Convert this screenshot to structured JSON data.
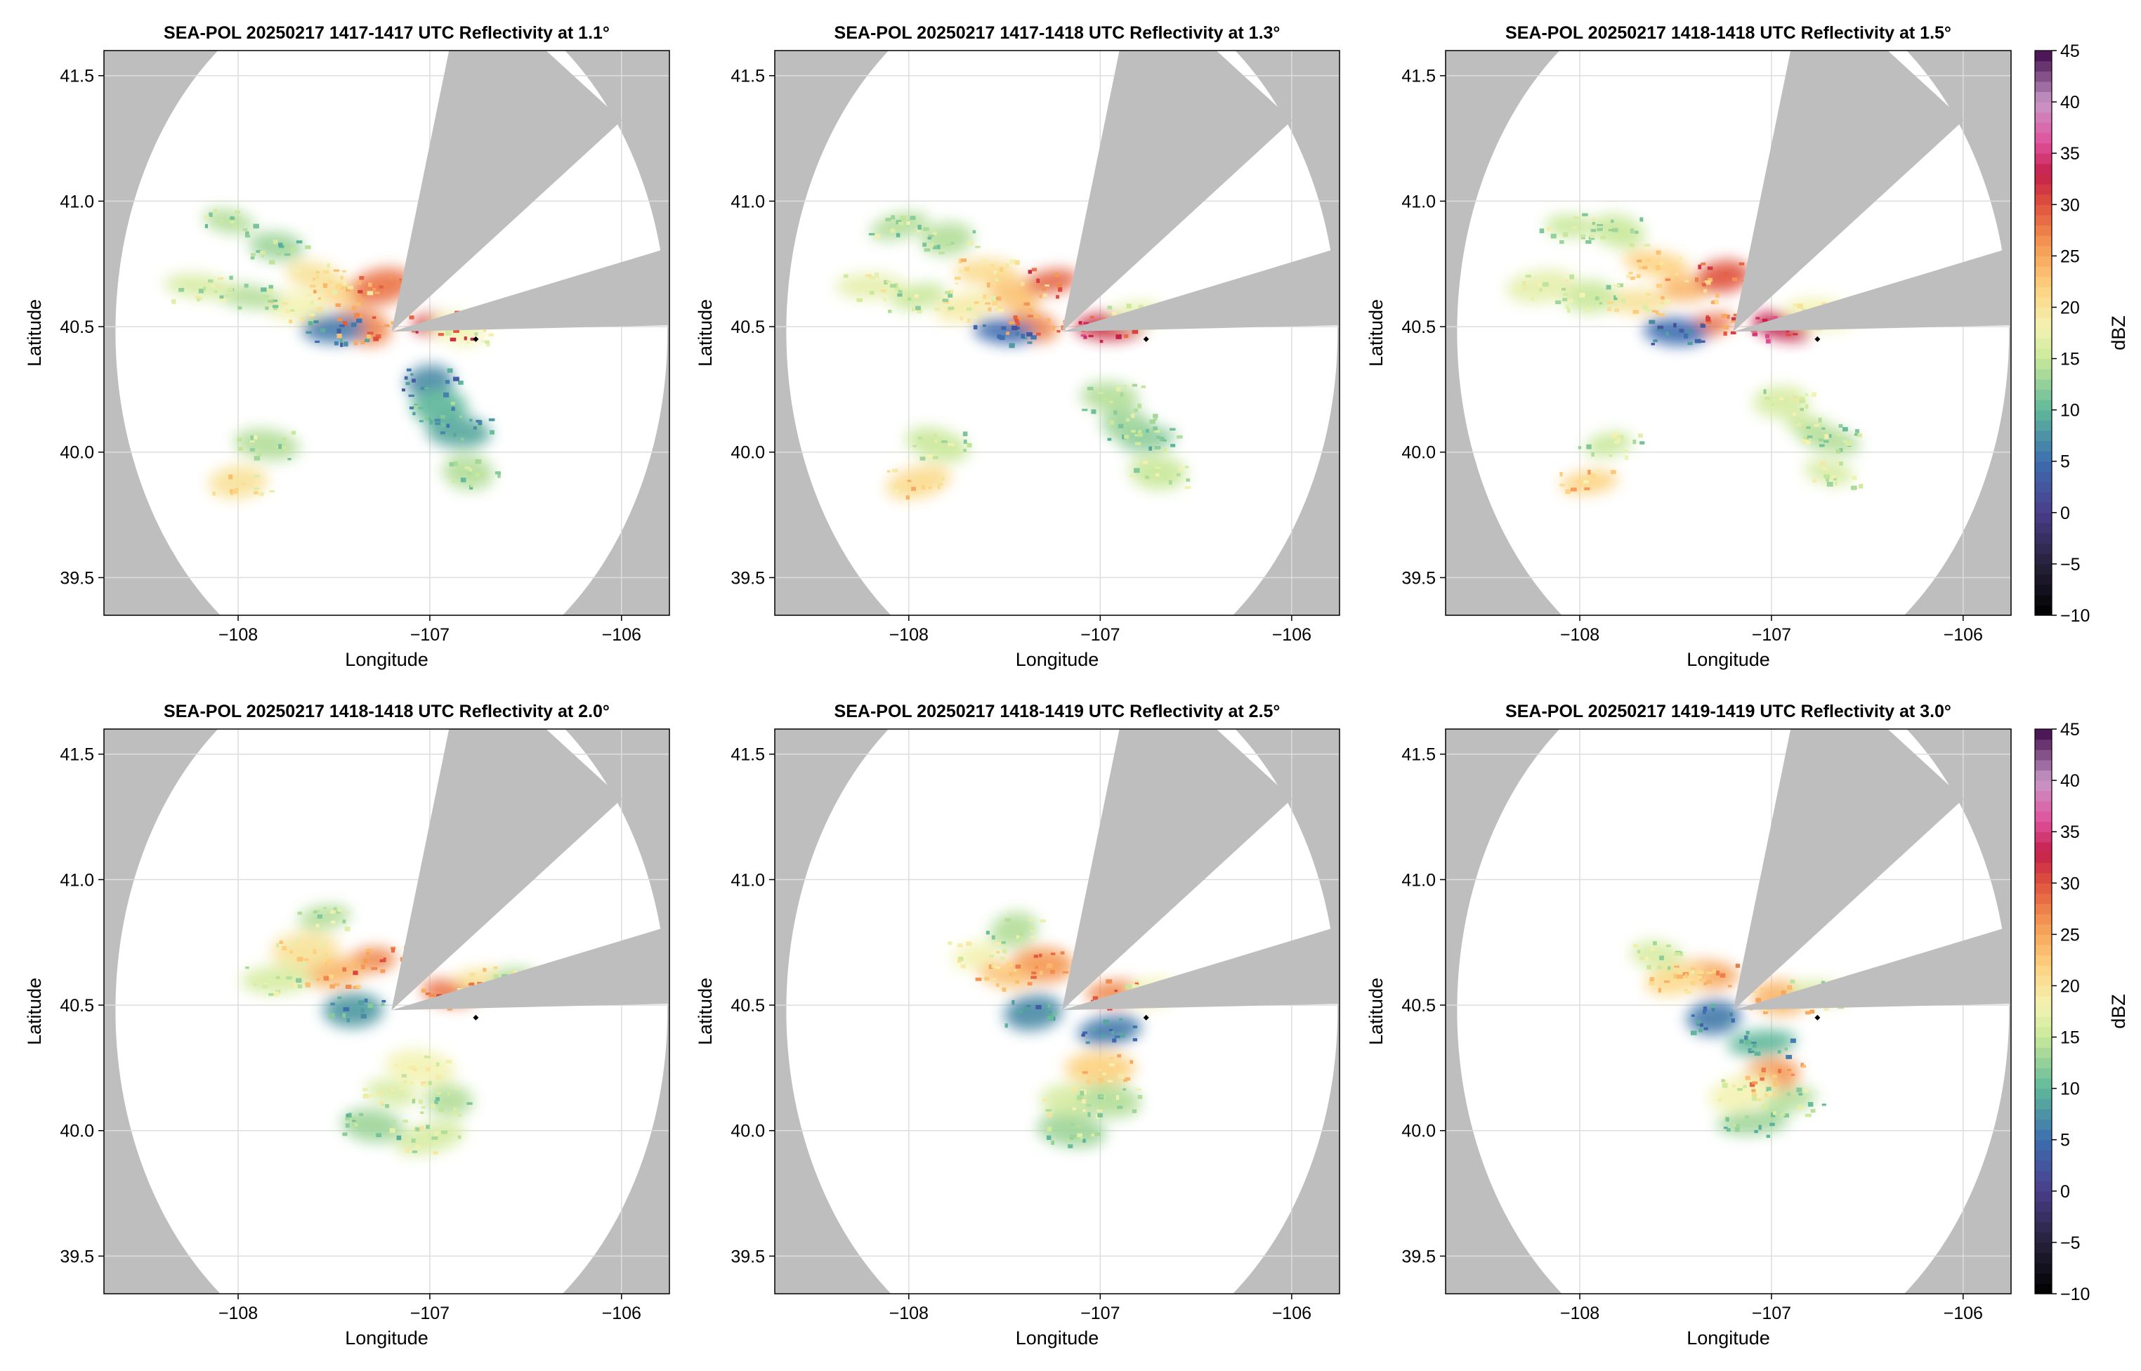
{
  "colors": {
    "background": "#ffffff",
    "masked_sector": "#bebebe",
    "radar_range": "#ffffff",
    "grid": "#dddddd",
    "frame": "#000000",
    "site_marker": "#000000"
  },
  "colormap": {
    "name": "Spectral (reversed) with purple/black ends",
    "stops": [
      [
        -10,
        "#000000"
      ],
      [
        -5,
        "#26213a"
      ],
      [
        0,
        "#4a3e8a"
      ],
      [
        5,
        "#3d6db0"
      ],
      [
        10,
        "#5fb89a"
      ],
      [
        15,
        "#c9e89a"
      ],
      [
        18,
        "#f3f3b4"
      ],
      [
        22,
        "#fdd17f"
      ],
      [
        26,
        "#f59a54"
      ],
      [
        30,
        "#e0523d"
      ],
      [
        33,
        "#c41f4a"
      ],
      [
        36,
        "#e0509a"
      ],
      [
        40,
        "#c998c8"
      ],
      [
        45,
        "#3e0a4a"
      ]
    ]
  },
  "chart_data": [
    {
      "type": "heatmap",
      "title": "SEA-POL 20250217 1417-1417 UTC Reflectivity at 1.1°",
      "xlabel": "Longitude",
      "ylabel": "Latitude",
      "xlim": [
        -108.7,
        -105.75
      ],
      "ylim": [
        39.35,
        41.6
      ],
      "xticks": [
        -108,
        -107,
        -106
      ],
      "xtick_labels": [
        "−108",
        "−107",
        "−106"
      ],
      "yticks": [
        39.5,
        40.0,
        40.5,
        41.0,
        41.5
      ],
      "ytick_labels": [
        "39.5",
        "40.0",
        "40.5",
        "41.0",
        "41.5"
      ],
      "grid": true,
      "radar_center": [
        -107.2,
        40.48
      ],
      "radar_range_deg": 1.44,
      "blocked_sectors_deg": [
        [
          15,
          55
        ],
        [
          77,
          89
        ]
      ],
      "site_marker": [
        -106.76,
        40.45
      ],
      "echo_cells": [
        {
          "lon": -107.45,
          "lat": 40.63,
          "dbz": 22
        },
        {
          "lon": -107.25,
          "lat": 40.66,
          "dbz": 28
        },
        {
          "lon": -107.7,
          "lat": 40.58,
          "dbz": 18
        },
        {
          "lon": -107.95,
          "lat": 40.62,
          "dbz": 14
        },
        {
          "lon": -108.2,
          "lat": 40.66,
          "dbz": 16
        },
        {
          "lon": -107.6,
          "lat": 40.7,
          "dbz": 20
        },
        {
          "lon": -107.35,
          "lat": 40.5,
          "dbz": 27
        },
        {
          "lon": -107.5,
          "lat": 40.49,
          "dbz": 6
        },
        {
          "lon": -107.8,
          "lat": 40.82,
          "dbz": 13
        },
        {
          "lon": -108.05,
          "lat": 40.92,
          "dbz": 14
        },
        {
          "lon": -106.95,
          "lat": 40.51,
          "dbz": 31
        },
        {
          "lon": -106.85,
          "lat": 40.49,
          "dbz": 18
        },
        {
          "lon": -107.0,
          "lat": 40.28,
          "dbz": 7
        },
        {
          "lon": -106.95,
          "lat": 40.18,
          "dbz": 10
        },
        {
          "lon": -106.85,
          "lat": 40.08,
          "dbz": 9
        },
        {
          "lon": -106.8,
          "lat": 39.92,
          "dbz": 14
        },
        {
          "lon": -108.0,
          "lat": 39.88,
          "dbz": 20
        },
        {
          "lon": -107.85,
          "lat": 40.03,
          "dbz": 14
        }
      ]
    },
    {
      "type": "heatmap",
      "title": "SEA-POL 20250217 1417-1418 UTC Reflectivity at 1.3°",
      "xlabel": "Longitude",
      "ylabel": "Latitude",
      "xlim": [
        -108.7,
        -105.75
      ],
      "ylim": [
        39.35,
        41.6
      ],
      "xticks": [
        -108,
        -107,
        -106
      ],
      "xtick_labels": [
        "−108",
        "−107",
        "−106"
      ],
      "yticks": [
        39.5,
        40.0,
        40.5,
        41.0,
        41.5
      ],
      "ytick_labels": [
        "39.5",
        "40.0",
        "40.5",
        "41.0",
        "41.5"
      ],
      "grid": true,
      "radar_center": [
        -107.2,
        40.48
      ],
      "radar_range_deg": 1.44,
      "blocked_sectors_deg": [
        [
          15,
          55
        ],
        [
          77,
          89
        ]
      ],
      "site_marker": [
        -106.76,
        40.45
      ],
      "echo_cells": [
        {
          "lon": -107.45,
          "lat": 40.63,
          "dbz": 23
        },
        {
          "lon": -107.25,
          "lat": 40.68,
          "dbz": 29
        },
        {
          "lon": -107.7,
          "lat": 40.58,
          "dbz": 19
        },
        {
          "lon": -107.95,
          "lat": 40.62,
          "dbz": 15
        },
        {
          "lon": -108.2,
          "lat": 40.66,
          "dbz": 17
        },
        {
          "lon": -107.6,
          "lat": 40.72,
          "dbz": 21
        },
        {
          "lon": -107.35,
          "lat": 40.5,
          "dbz": 27
        },
        {
          "lon": -107.5,
          "lat": 40.48,
          "dbz": 5
        },
        {
          "lon": -107.8,
          "lat": 40.85,
          "dbz": 14
        },
        {
          "lon": -108.05,
          "lat": 40.9,
          "dbz": 14
        },
        {
          "lon": -106.95,
          "lat": 40.5,
          "dbz": 32
        },
        {
          "lon": -106.8,
          "lat": 40.55,
          "dbz": 17
        },
        {
          "lon": -106.95,
          "lat": 40.22,
          "dbz": 14
        },
        {
          "lon": -106.85,
          "lat": 40.1,
          "dbz": 13
        },
        {
          "lon": -106.75,
          "lat": 40.05,
          "dbz": 12
        },
        {
          "lon": -106.7,
          "lat": 39.92,
          "dbz": 15
        },
        {
          "lon": -107.95,
          "lat": 39.88,
          "dbz": 21
        },
        {
          "lon": -107.85,
          "lat": 40.03,
          "dbz": 15
        }
      ]
    },
    {
      "type": "heatmap",
      "title": "SEA-POL 20250217 1418-1418 UTC Reflectivity at 1.5°",
      "xlabel": "Longitude",
      "ylabel": "Latitude",
      "xlim": [
        -108.7,
        -105.75
      ],
      "ylim": [
        39.35,
        41.6
      ],
      "xticks": [
        -108,
        -107,
        -106
      ],
      "xtick_labels": [
        "−108",
        "−107",
        "−106"
      ],
      "yticks": [
        39.5,
        40.0,
        40.5,
        41.0,
        41.5
      ],
      "ytick_labels": [
        "39.5",
        "40.0",
        "40.5",
        "41.0",
        "41.5"
      ],
      "grid": true,
      "radar_center": [
        -107.2,
        40.48
      ],
      "radar_range_deg": 1.44,
      "blocked_sectors_deg": [
        [
          15,
          55
        ],
        [
          77,
          89
        ]
      ],
      "site_marker": [
        -106.76,
        40.45
      ],
      "echo_cells": [
        {
          "lon": -107.45,
          "lat": 40.65,
          "dbz": 24
        },
        {
          "lon": -107.25,
          "lat": 40.7,
          "dbz": 30
        },
        {
          "lon": -107.7,
          "lat": 40.6,
          "dbz": 20
        },
        {
          "lon": -107.95,
          "lat": 40.62,
          "dbz": 15
        },
        {
          "lon": -108.2,
          "lat": 40.66,
          "dbz": 17
        },
        {
          "lon": -107.6,
          "lat": 40.75,
          "dbz": 22
        },
        {
          "lon": -107.35,
          "lat": 40.5,
          "dbz": 28
        },
        {
          "lon": -107.5,
          "lat": 40.48,
          "dbz": 5
        },
        {
          "lon": -107.8,
          "lat": 40.88,
          "dbz": 15
        },
        {
          "lon": -108.05,
          "lat": 40.9,
          "dbz": 15
        },
        {
          "lon": -106.95,
          "lat": 40.5,
          "dbz": 33
        },
        {
          "lon": -106.75,
          "lat": 40.55,
          "dbz": 18
        },
        {
          "lon": -106.95,
          "lat": 40.2,
          "dbz": 16
        },
        {
          "lon": -106.8,
          "lat": 40.1,
          "dbz": 15
        },
        {
          "lon": -106.7,
          "lat": 40.05,
          "dbz": 14
        },
        {
          "lon": -106.7,
          "lat": 39.92,
          "dbz": 16
        },
        {
          "lon": -107.95,
          "lat": 39.88,
          "dbz": 22
        },
        {
          "lon": -107.85,
          "lat": 40.03,
          "dbz": 15
        }
      ]
    },
    {
      "type": "heatmap",
      "title": "SEA-POL 20250217 1418-1418 UTC Reflectivity at 2.0°",
      "xlabel": "Longitude",
      "ylabel": "Latitude",
      "xlim": [
        -108.7,
        -105.75
      ],
      "ylim": [
        39.35,
        41.6
      ],
      "xticks": [
        -108,
        -107,
        -106
      ],
      "xtick_labels": [
        "−108",
        "−107",
        "−106"
      ],
      "yticks": [
        39.5,
        40.0,
        40.5,
        41.0,
        41.5
      ],
      "ytick_labels": [
        "39.5",
        "40.0",
        "40.5",
        "41.0",
        "41.5"
      ],
      "grid": true,
      "radar_center": [
        -107.2,
        40.48
      ],
      "radar_range_deg": 1.44,
      "blocked_sectors_deg": [
        [
          15,
          55
        ],
        [
          77,
          89
        ]
      ],
      "site_marker": [
        -106.76,
        40.45
      ],
      "echo_cells": [
        {
          "lon": -107.3,
          "lat": 40.68,
          "dbz": 27
        },
        {
          "lon": -107.5,
          "lat": 40.63,
          "dbz": 24
        },
        {
          "lon": -107.65,
          "lat": 40.72,
          "dbz": 20
        },
        {
          "lon": -107.8,
          "lat": 40.6,
          "dbz": 16
        },
        {
          "lon": -107.55,
          "lat": 40.85,
          "dbz": 14
        },
        {
          "lon": -107.4,
          "lat": 40.48,
          "dbz": 8
        },
        {
          "lon": -106.9,
          "lat": 40.55,
          "dbz": 28
        },
        {
          "lon": -106.7,
          "lat": 40.6,
          "dbz": 20
        },
        {
          "lon": -106.55,
          "lat": 40.6,
          "dbz": 14
        },
        {
          "lon": -107.05,
          "lat": 40.25,
          "dbz": 18
        },
        {
          "lon": -107.2,
          "lat": 40.15,
          "dbz": 16
        },
        {
          "lon": -106.9,
          "lat": 40.12,
          "dbz": 14
        },
        {
          "lon": -107.3,
          "lat": 40.02,
          "dbz": 13
        },
        {
          "lon": -107.0,
          "lat": 39.97,
          "dbz": 16
        }
      ]
    },
    {
      "type": "heatmap",
      "title": "SEA-POL 20250217 1418-1419 UTC Reflectivity at 2.5°",
      "xlabel": "Longitude",
      "ylabel": "Latitude",
      "xlim": [
        -108.7,
        -105.75
      ],
      "ylim": [
        39.35,
        41.6
      ],
      "xticks": [
        -108,
        -107,
        -106
      ],
      "xtick_labels": [
        "−108",
        "−107",
        "−106"
      ],
      "yticks": [
        39.5,
        40.0,
        40.5,
        41.0,
        41.5
      ],
      "ytick_labels": [
        "39.5",
        "40.0",
        "40.5",
        "41.0",
        "41.5"
      ],
      "grid": true,
      "radar_center": [
        -107.2,
        40.48
      ],
      "radar_range_deg": 1.44,
      "blocked_sectors_deg": [
        [
          15,
          55
        ],
        [
          77,
          89
        ]
      ],
      "site_marker": [
        -106.76,
        40.45
      ],
      "echo_cells": [
        {
          "lon": -107.3,
          "lat": 40.66,
          "dbz": 26
        },
        {
          "lon": -107.5,
          "lat": 40.62,
          "dbz": 23
        },
        {
          "lon": -107.65,
          "lat": 40.7,
          "dbz": 18
        },
        {
          "lon": -107.45,
          "lat": 40.8,
          "dbz": 14
        },
        {
          "lon": -107.35,
          "lat": 40.47,
          "dbz": 7
        },
        {
          "lon": -106.9,
          "lat": 40.55,
          "dbz": 27
        },
        {
          "lon": -106.72,
          "lat": 40.55,
          "dbz": 18
        },
        {
          "lon": -106.95,
          "lat": 40.4,
          "dbz": 6
        },
        {
          "lon": -107.0,
          "lat": 40.25,
          "dbz": 22
        },
        {
          "lon": -107.15,
          "lat": 40.12,
          "dbz": 16
        },
        {
          "lon": -106.95,
          "lat": 40.12,
          "dbz": 14
        },
        {
          "lon": -107.15,
          "lat": 40.0,
          "dbz": 13
        }
      ]
    },
    {
      "type": "heatmap",
      "title": "SEA-POL 20250217 1419-1419 UTC Reflectivity at 3.0°",
      "xlabel": "Longitude",
      "ylabel": "Latitude",
      "xlim": [
        -108.7,
        -105.75
      ],
      "ylim": [
        39.35,
        41.6
      ],
      "xticks": [
        -108,
        -107,
        -106
      ],
      "xtick_labels": [
        "−108",
        "−107",
        "−106"
      ],
      "yticks": [
        39.5,
        40.0,
        40.5,
        41.0,
        41.5
      ],
      "ytick_labels": [
        "39.5",
        "40.0",
        "40.5",
        "41.0",
        "41.5"
      ],
      "grid": true,
      "radar_center": [
        -107.2,
        40.48
      ],
      "radar_range_deg": 1.44,
      "blocked_sectors_deg": [
        [
          15,
          55
        ],
        [
          77,
          89
        ]
      ],
      "site_marker": [
        -106.76,
        40.45
      ],
      "echo_cells": [
        {
          "lon": -107.35,
          "lat": 40.62,
          "dbz": 25
        },
        {
          "lon": -107.5,
          "lat": 40.6,
          "dbz": 21
        },
        {
          "lon": -107.6,
          "lat": 40.7,
          "dbz": 16
        },
        {
          "lon": -107.3,
          "lat": 40.45,
          "dbz": 6
        },
        {
          "lon": -106.95,
          "lat": 40.53,
          "dbz": 24
        },
        {
          "lon": -106.75,
          "lat": 40.55,
          "dbz": 16
        },
        {
          "lon": -107.05,
          "lat": 40.35,
          "dbz": 10
        },
        {
          "lon": -107.0,
          "lat": 40.22,
          "dbz": 26
        },
        {
          "lon": -107.15,
          "lat": 40.15,
          "dbz": 18
        },
        {
          "lon": -106.9,
          "lat": 40.12,
          "dbz": 14
        },
        {
          "lon": -107.1,
          "lat": 40.03,
          "dbz": 13
        }
      ]
    }
  ],
  "colorbars": [
    {
      "label": "dBZ",
      "range": [
        -10,
        45
      ],
      "ticks": [
        -10,
        -5,
        0,
        5,
        10,
        15,
        20,
        25,
        30,
        35,
        40,
        45
      ],
      "tick_labels": [
        "−10",
        "−5",
        "0",
        "5",
        "10",
        "15",
        "20",
        "25",
        "30",
        "35",
        "40",
        "45"
      ]
    },
    {
      "label": "dBZ",
      "range": [
        -10,
        45
      ],
      "ticks": [
        -10,
        -5,
        0,
        5,
        10,
        15,
        20,
        25,
        30,
        35,
        40,
        45
      ],
      "tick_labels": [
        "−10",
        "−5",
        "0",
        "5",
        "10",
        "15",
        "20",
        "25",
        "30",
        "35",
        "40",
        "45"
      ]
    }
  ]
}
